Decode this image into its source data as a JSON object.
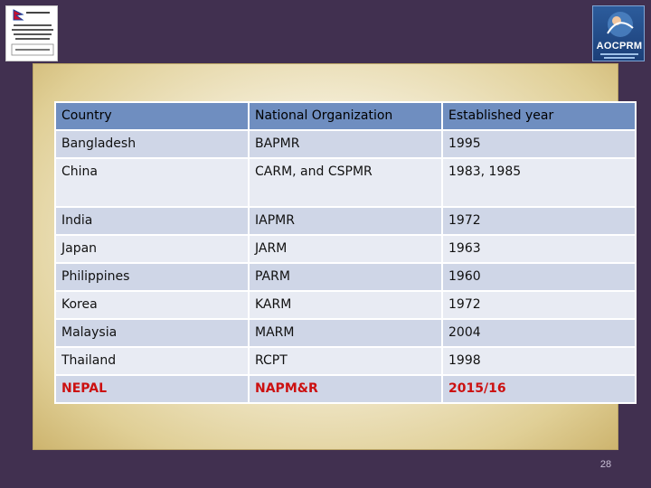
{
  "table": {
    "headers": [
      "Country",
      "National Organization",
      "Established year"
    ],
    "rows": [
      [
        "Bangladesh",
        "BAPMR",
        "1995"
      ],
      [
        "China",
        "CARM, and CSPMR",
        "1983, 1985"
      ],
      [
        "India",
        "IAPMR",
        "1972"
      ],
      [
        "Japan",
        "JARM",
        "1963"
      ],
      [
        "Philippines",
        "PARM",
        "1960"
      ],
      [
        "Korea",
        "KARM",
        "1972"
      ],
      [
        "Malaysia",
        "MARM",
        "2004"
      ],
      [
        "Thailand",
        "RCPT",
        "1998"
      ],
      [
        "NEPAL",
        "NAPM&R",
        "2015/16"
      ]
    ],
    "highlight_color": "#cc1010",
    "header_color": "#6f8ec0"
  },
  "logos": {
    "right_brand": "AOCPRM"
  },
  "page_number": "28"
}
